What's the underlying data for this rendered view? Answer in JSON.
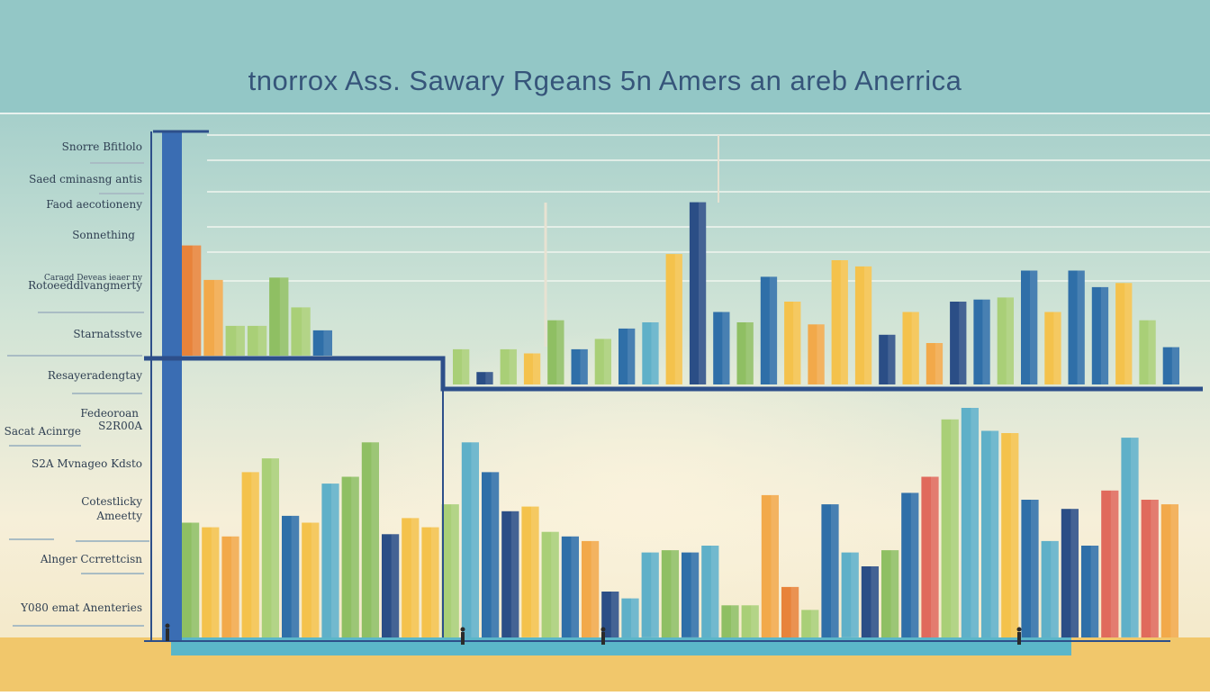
{
  "title": "tnorrox Ass. Sawary Rgeans 5n Amers an areb Anerrica",
  "colors": {
    "sky_top": "#8ec4c4",
    "sky_bottom": "#f7f0d8",
    "ground": "#f1c76b",
    "axis": "#2d4f8a",
    "shelf": "#3f7db8",
    "orange": "#e8833a",
    "light_orange": "#f2a94a",
    "yellow": "#f4c24c",
    "green": "#8fbf63",
    "light_green": "#a9cf77",
    "blue": "#2f6fa8",
    "teal": "#5fb0c8",
    "red": "#e06a5c",
    "navy": "#2b4e86"
  },
  "side_labels": [
    {
      "text": "Snorre Bfitlolo",
      "small": false
    },
    {
      "text": "Saed cminasng antis",
      "small": false
    },
    {
      "text": "Faod aecotioneny",
      "small": false
    },
    {
      "text": "Sonnething",
      "small": false
    },
    {
      "text": "Caragd Deveas ieaer ny",
      "small": true
    },
    {
      "text": "Rotoeeddlvangmerty",
      "small": false
    },
    {
      "text": "Starnatsstve",
      "small": false
    },
    {
      "text": "Resayeradengtay",
      "small": false
    },
    {
      "text": "Fedeoroan",
      "small": false
    },
    {
      "text": "S2R00A",
      "small": false
    },
    {
      "text": "Sacat Acinrge",
      "small": false
    },
    {
      "text": "S2A Mvnageo Kdsto",
      "small": false
    },
    {
      "text": "Cotestlicky",
      "small": false
    },
    {
      "text": "Ameetty",
      "small": false
    },
    {
      "text": "Alnger Ccrrettcisn",
      "small": false
    },
    {
      "text": "Y080 emat Anenteries",
      "small": false
    }
  ],
  "chart_data": [
    {
      "type": "bar",
      "name_ref": "upper-left-group",
      "ylim": [
        0,
        100
      ],
      "values": [
        48,
        33,
        13,
        13,
        34,
        21,
        11
      ],
      "colors": [
        "orange",
        "light_orange",
        "light_green",
        "light_green",
        "green",
        "light_green",
        "blue"
      ]
    },
    {
      "type": "bar",
      "name_ref": "upper-right-group",
      "ylim": [
        0,
        100
      ],
      "values": [
        17,
        6,
        17,
        15,
        31,
        17,
        22,
        27,
        30,
        63,
        88,
        35,
        30,
        52,
        40,
        29,
        60,
        57,
        24,
        35,
        20,
        40,
        41,
        42,
        55,
        35,
        55,
        47,
        49,
        31,
        18
      ],
      "colors": [
        "light_green",
        "navy",
        "light_green",
        "yellow",
        "green",
        "blue",
        "light_green",
        "blue",
        "teal",
        "yellow",
        "navy",
        "blue",
        "green",
        "blue",
        "yellow",
        "light_orange",
        "yellow",
        "yellow",
        "navy",
        "yellow",
        "light_orange",
        "navy",
        "blue",
        "light_green",
        "blue",
        "yellow",
        "blue",
        "blue",
        "yellow",
        "light_green",
        "blue"
      ]
    },
    {
      "type": "bar",
      "name_ref": "lower-group",
      "ylim": [
        0,
        100
      ],
      "values": [
        50,
        48,
        44,
        72,
        78,
        53,
        50,
        67,
        70,
        85,
        45,
        52,
        48,
        58,
        85,
        72,
        55,
        57,
        46,
        44,
        42,
        20,
        17,
        37,
        38,
        37,
        40,
        14,
        14,
        62,
        22,
        12,
        58,
        37,
        31,
        38,
        63,
        70,
        95,
        100,
        90,
        89,
        60,
        42,
        56,
        40,
        64,
        87,
        60,
        58
      ],
      "colors": [
        "green",
        "yellow",
        "light_orange",
        "yellow",
        "light_green",
        "blue",
        "yellow",
        "teal",
        "green",
        "green",
        "navy",
        "yellow",
        "yellow",
        "light_green",
        "teal",
        "blue",
        "navy",
        "yellow",
        "light_green",
        "blue",
        "light_orange",
        "navy",
        "teal",
        "teal",
        "green",
        "blue",
        "teal",
        "green",
        "light_green",
        "light_orange",
        "orange",
        "light_green",
        "blue",
        "teal",
        "navy",
        "green",
        "blue",
        "red",
        "light_green",
        "teal",
        "teal",
        "yellow",
        "blue",
        "teal",
        "navy",
        "blue",
        "red",
        "teal",
        "red",
        "light_orange"
      ]
    }
  ]
}
